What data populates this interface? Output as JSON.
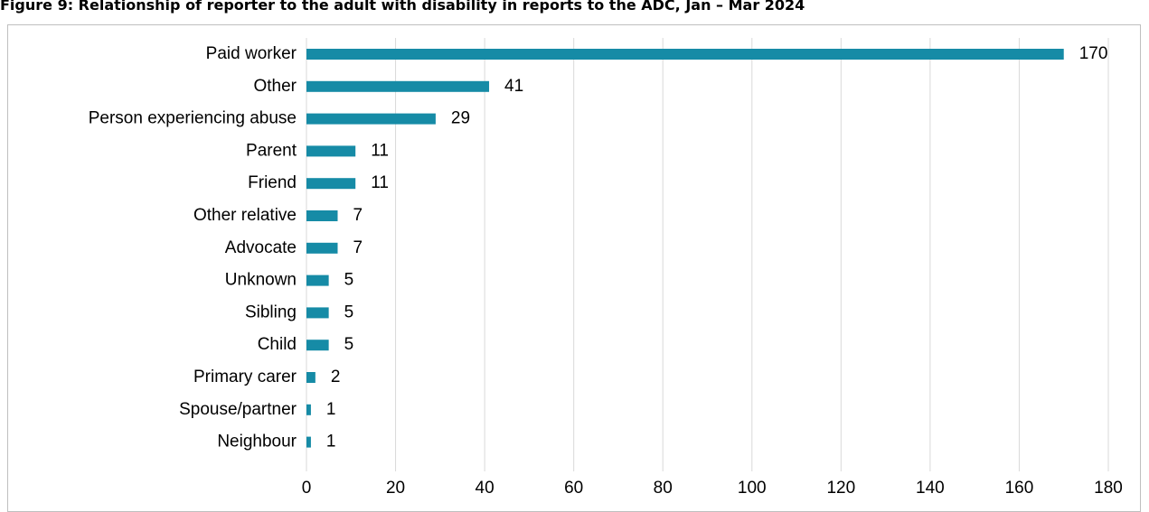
{
  "title": "Figure 9: Relationship of reporter to the adult with disability in reports to the ADC, Jan – Mar 2024",
  "chart_data": {
    "type": "bar",
    "orientation": "horizontal",
    "categories": [
      "Paid worker",
      "Other",
      "Person experiencing abuse",
      "Parent",
      "Friend",
      "Other relative",
      "Advocate",
      "Unknown",
      "Sibling",
      "Child",
      "Primary carer",
      "Spouse/partner",
      "Neighbour"
    ],
    "values": [
      170,
      41,
      29,
      11,
      11,
      7,
      7,
      5,
      5,
      5,
      2,
      1,
      1
    ],
    "xlim": [
      0,
      180
    ],
    "xticks": [
      0,
      20,
      40,
      60,
      80,
      100,
      120,
      140,
      160,
      180
    ],
    "grid": true,
    "data_labels": true,
    "bar_color": "#168ba6",
    "grid_color": "#d9d9d9",
    "legend": "none"
  }
}
